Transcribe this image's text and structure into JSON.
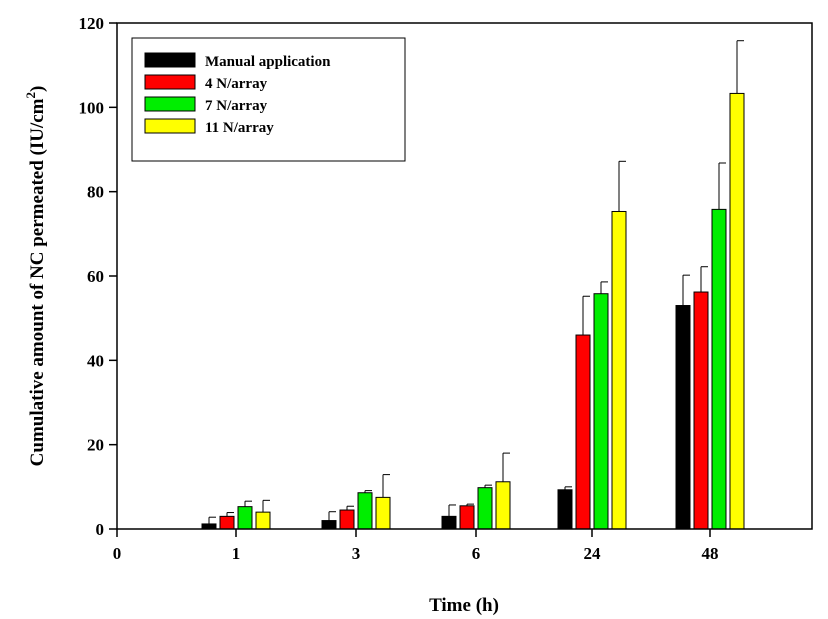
{
  "chart_data": {
    "type": "bar",
    "xlabel": "Time (h)",
    "ylabel": "Cumulative amount of NC permeated (IU/cm",
    "ylabel_sup": "2",
    "ylabel_end": ")",
    "ylim": [
      0,
      120
    ],
    "yticks": [
      0,
      20,
      40,
      60,
      80,
      100,
      120
    ],
    "x_tick_labels": [
      "0",
      "1",
      "3",
      "6",
      "24",
      "48"
    ],
    "categories": [
      "1",
      "3",
      "6",
      "24",
      "48"
    ],
    "series": [
      {
        "name": "Manual application",
        "color": "#000000",
        "values": [
          1.2,
          2.0,
          3.0,
          9.3,
          53.0
        ],
        "errors": [
          1.6,
          2.1,
          2.7,
          0.7,
          7.2
        ]
      },
      {
        "name": "4 N/array",
        "color": "#ff0000",
        "values": [
          3.0,
          4.5,
          5.5,
          46.0,
          56.2
        ],
        "errors": [
          0.9,
          0.9,
          0.4,
          9.2,
          6.0
        ]
      },
      {
        "name": "7 N/array",
        "color": "#00ee00",
        "values": [
          5.3,
          8.6,
          9.8,
          55.8,
          75.8
        ],
        "errors": [
          1.3,
          0.5,
          0.6,
          2.8,
          11.0
        ]
      },
      {
        "name": "11 N/array",
        "color": "#ffff00",
        "values": [
          4.0,
          7.5,
          11.2,
          75.3,
          103.3
        ],
        "errors": [
          2.8,
          5.4,
          6.8,
          11.9,
          12.5
        ]
      }
    ],
    "legend_position": "top-left",
    "grid": false
  }
}
